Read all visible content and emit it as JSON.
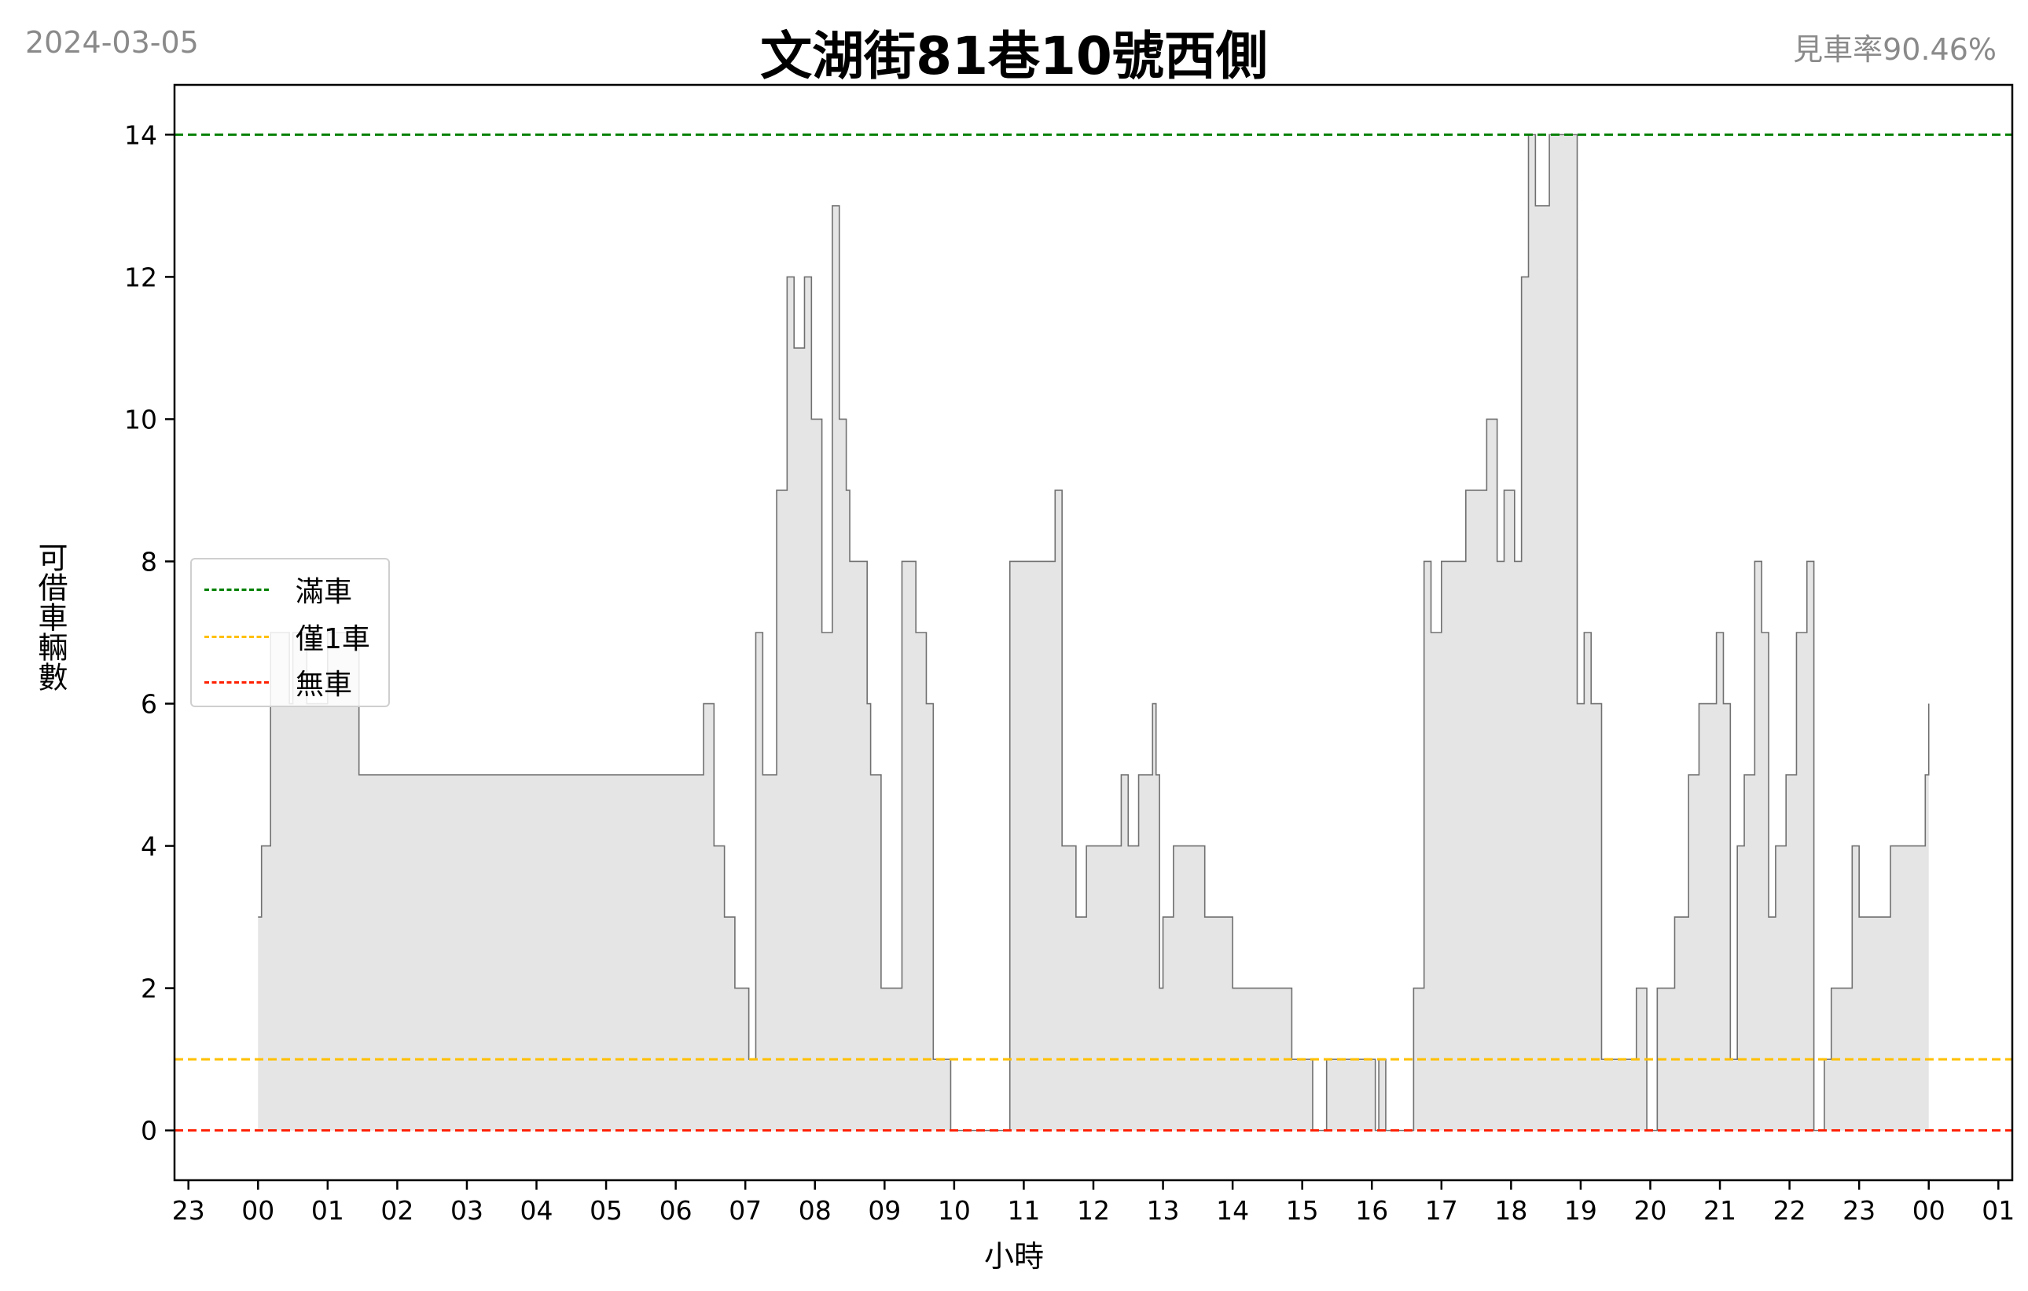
{
  "header": {
    "date": "2024-03-05",
    "title": "文湖街81巷10號西側",
    "availability_rate": "見車率90.46%"
  },
  "legend": {
    "items": [
      {
        "label": "滿車",
        "color": "#008000"
      },
      {
        "label": "僅1車",
        "color": "#FFC000"
      },
      {
        "label": "無車",
        "color": "#FF2000"
      }
    ]
  },
  "chart_data": {
    "type": "area",
    "title": "文湖街81巷10號西側",
    "xlabel": "小時",
    "ylabel": "可借車輛數",
    "x_tick_labels": [
      "23",
      "00",
      "01",
      "02",
      "03",
      "04",
      "05",
      "06",
      "07",
      "08",
      "09",
      "10",
      "11",
      "12",
      "13",
      "14",
      "15",
      "16",
      "17",
      "18",
      "19",
      "20",
      "21",
      "22",
      "23",
      "00",
      "01"
    ],
    "x_range_hours": [
      -1.2,
      25.2
    ],
    "ylim": [
      -0.7,
      14.7
    ],
    "y_ticks": [
      0,
      2,
      4,
      6,
      8,
      10,
      12,
      14
    ],
    "reference_lines": [
      {
        "name": "滿車",
        "y": 14,
        "color": "#008000"
      },
      {
        "name": "僅1車",
        "y": 1,
        "color": "#FFC000"
      },
      {
        "name": "無車",
        "y": 0,
        "color": "#FF2000"
      }
    ],
    "series": [
      {
        "fill": "#e5e5e5",
        "line": "#707070",
        "points": [
          [
            0.0,
            3
          ],
          [
            0.05,
            4
          ],
          [
            0.18,
            7
          ],
          [
            0.45,
            6
          ],
          [
            0.5,
            7
          ],
          [
            0.7,
            6
          ],
          [
            1.0,
            7
          ],
          [
            1.45,
            5
          ],
          [
            6.4,
            6
          ],
          [
            6.55,
            4
          ],
          [
            6.7,
            3
          ],
          [
            6.85,
            2
          ],
          [
            7.05,
            1
          ],
          [
            7.15,
            7
          ],
          [
            7.25,
            5
          ],
          [
            7.45,
            9
          ],
          [
            7.6,
            12
          ],
          [
            7.7,
            11
          ],
          [
            7.85,
            12
          ],
          [
            7.95,
            10
          ],
          [
            8.1,
            7
          ],
          [
            8.25,
            13
          ],
          [
            8.35,
            10
          ],
          [
            8.45,
            9
          ],
          [
            8.5,
            8
          ],
          [
            8.75,
            6
          ],
          [
            8.8,
            5
          ],
          [
            8.95,
            2
          ],
          [
            9.25,
            8
          ],
          [
            9.45,
            7
          ],
          [
            9.6,
            6
          ],
          [
            9.7,
            1
          ],
          [
            9.95,
            0
          ],
          [
            10.8,
            8
          ],
          [
            11.45,
            9
          ],
          [
            11.55,
            4
          ],
          [
            11.75,
            3
          ],
          [
            11.9,
            4
          ],
          [
            12.4,
            5
          ],
          [
            12.5,
            4
          ],
          [
            12.65,
            5
          ],
          [
            12.85,
            6
          ],
          [
            12.9,
            5
          ],
          [
            12.95,
            2
          ],
          [
            13.0,
            3
          ],
          [
            13.15,
            4
          ],
          [
            13.6,
            3
          ],
          [
            14.0,
            2
          ],
          [
            14.85,
            1
          ],
          [
            15.15,
            0
          ],
          [
            15.35,
            1
          ],
          [
            16.05,
            0
          ],
          [
            16.1,
            1
          ],
          [
            16.2,
            0
          ],
          [
            16.6,
            2
          ],
          [
            16.75,
            8
          ],
          [
            16.85,
            7
          ],
          [
            17.0,
            8
          ],
          [
            17.35,
            9
          ],
          [
            17.65,
            10
          ],
          [
            17.8,
            8
          ],
          [
            17.9,
            9
          ],
          [
            18.05,
            8
          ],
          [
            18.15,
            12
          ],
          [
            18.25,
            14
          ],
          [
            18.35,
            13
          ],
          [
            18.55,
            14
          ],
          [
            18.95,
            6
          ],
          [
            19.05,
            7
          ],
          [
            19.15,
            6
          ],
          [
            19.3,
            1
          ],
          [
            19.8,
            2
          ],
          [
            19.95,
            0
          ],
          [
            20.1,
            2
          ],
          [
            20.35,
            3
          ],
          [
            20.55,
            5
          ],
          [
            20.7,
            6
          ],
          [
            20.95,
            7
          ],
          [
            21.05,
            6
          ],
          [
            21.15,
            1
          ],
          [
            21.25,
            4
          ],
          [
            21.35,
            5
          ],
          [
            21.5,
            8
          ],
          [
            21.6,
            7
          ],
          [
            21.7,
            3
          ],
          [
            21.8,
            4
          ],
          [
            21.95,
            5
          ],
          [
            22.1,
            7
          ],
          [
            22.25,
            8
          ],
          [
            22.35,
            0
          ],
          [
            22.5,
            1
          ],
          [
            22.6,
            2
          ],
          [
            22.9,
            4
          ],
          [
            23.0,
            3
          ],
          [
            23.45,
            4
          ],
          [
            23.95,
            5
          ],
          [
            24.0,
            6
          ]
        ]
      }
    ],
    "grid": false,
    "legend_position": "center-left"
  }
}
